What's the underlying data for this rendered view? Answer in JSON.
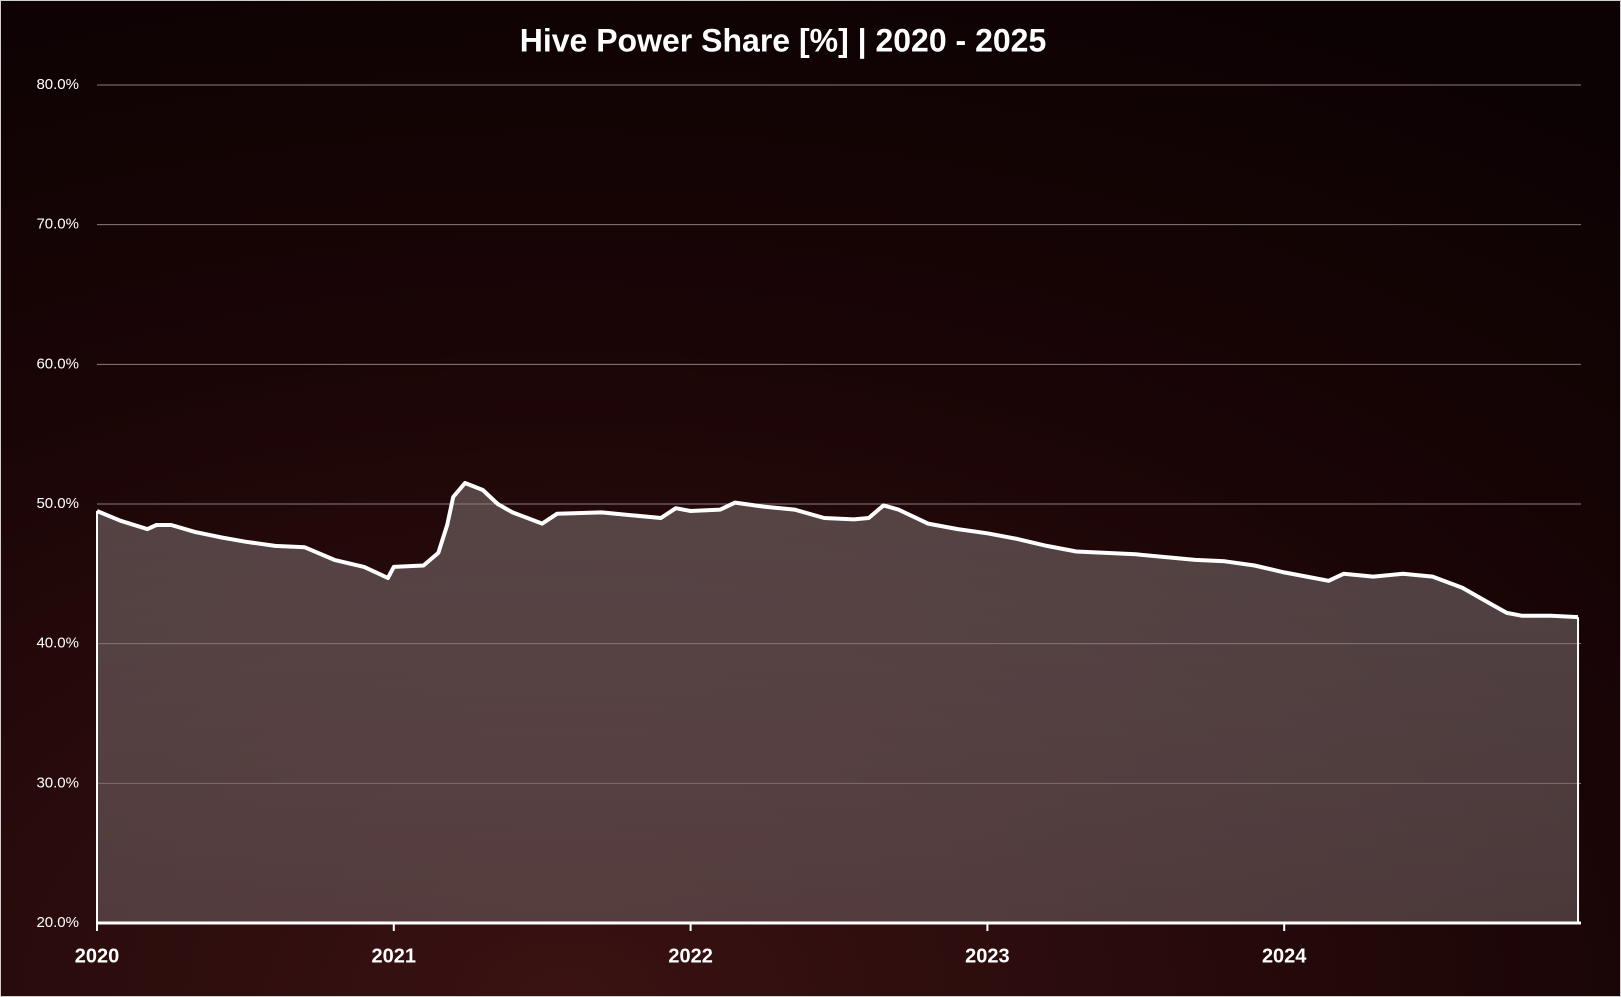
{
  "chart_data": {
    "type": "area",
    "title": "Hive Power Share [%] | 2020 - 2025",
    "x": [
      2020.0,
      2020.08,
      2020.17,
      2020.2,
      2020.25,
      2020.33,
      2020.42,
      2020.5,
      2020.6,
      2020.7,
      2020.8,
      2020.9,
      2020.95,
      2020.98,
      2021.0,
      2021.1,
      2021.15,
      2021.18,
      2021.2,
      2021.24,
      2021.3,
      2021.35,
      2021.4,
      2021.45,
      2021.5,
      2021.55,
      2021.7,
      2021.8,
      2021.9,
      2021.95,
      2022.0,
      2022.1,
      2022.15,
      2022.25,
      2022.35,
      2022.45,
      2022.55,
      2022.6,
      2022.65,
      2022.7,
      2022.8,
      2022.9,
      2023.0,
      2023.1,
      2023.2,
      2023.3,
      2023.5,
      2023.7,
      2023.8,
      2023.9,
      2024.0,
      2024.1,
      2024.15,
      2024.2,
      2024.3,
      2024.4,
      2024.5,
      2024.6,
      2024.7,
      2024.75,
      2024.8,
      2024.9,
      2024.99
    ],
    "series": [
      {
        "name": "Hive Power Share",
        "color": "#ffffff",
        "values": [
          49.5,
          48.8,
          48.2,
          48.5,
          48.5,
          48.0,
          47.6,
          47.3,
          47.0,
          46.9,
          46.0,
          45.5,
          45.0,
          44.7,
          45.5,
          45.6,
          46.5,
          48.5,
          50.5,
          51.5,
          51.0,
          50.0,
          49.4,
          49.0,
          48.6,
          49.3,
          49.4,
          49.2,
          49.0,
          49.7,
          49.5,
          49.6,
          50.1,
          49.8,
          49.6,
          49.0,
          48.9,
          49.0,
          49.9,
          49.6,
          48.6,
          48.2,
          47.9,
          47.5,
          47.0,
          46.6,
          46.4,
          46.0,
          45.9,
          45.6,
          45.1,
          44.7,
          44.5,
          45.0,
          44.8,
          45.0,
          44.8,
          44.0,
          42.8,
          42.2,
          42.0,
          42.0,
          41.9
        ]
      }
    ],
    "xlim": [
      2020,
      2025
    ],
    "xticks": [
      2020,
      2021,
      2022,
      2023,
      2024
    ],
    "ylim": [
      20,
      80
    ],
    "yticks": [
      {
        "value": 20,
        "label": "20.0%"
      },
      {
        "value": 30,
        "label": "30.0%"
      },
      {
        "value": 40,
        "label": "40.0%"
      },
      {
        "value": 50,
        "label": "50.0%"
      },
      {
        "value": 60,
        "label": "60.0%"
      },
      {
        "value": 70,
        "label": "70.0%"
      },
      {
        "value": 80,
        "label": "80.0%"
      }
    ],
    "grid": true
  }
}
